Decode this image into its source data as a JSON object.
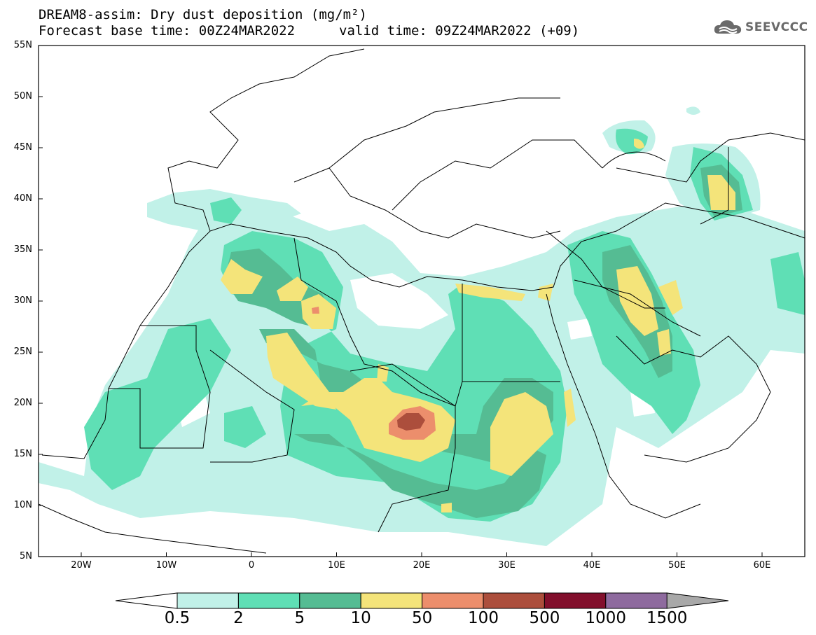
{
  "title": {
    "line1": "DREAM8-assim: Dry dust deposition (mg/m²)",
    "line2_base": "Forecast base time: 00Z24MAR2022",
    "line2_valid": "valid time: 09Z24MAR2022 (+09)"
  },
  "logo": {
    "text": "SEEVCCC",
    "icon": "cloud-icon"
  },
  "y_axis": [
    "55N",
    "50N",
    "45N",
    "40N",
    "35N",
    "30N",
    "25N",
    "20N",
    "15N",
    "10N",
    "5N"
  ],
  "x_axis": [
    "20W",
    "10W",
    "0",
    "10E",
    "20E",
    "30E",
    "40E",
    "50E",
    "60E"
  ],
  "legend": {
    "labels": [
      "0.5",
      "2",
      "5",
      "10",
      "50",
      "100",
      "500",
      "1000",
      "1500"
    ],
    "colors": [
      "#c1f1e8",
      "#5fdfb5",
      "#55bc93",
      "#f4e47a",
      "#ec8e6c",
      "#ac4e3c",
      "#820f2c",
      "#8e6a9e",
      "#a8a8a8"
    ]
  }
}
